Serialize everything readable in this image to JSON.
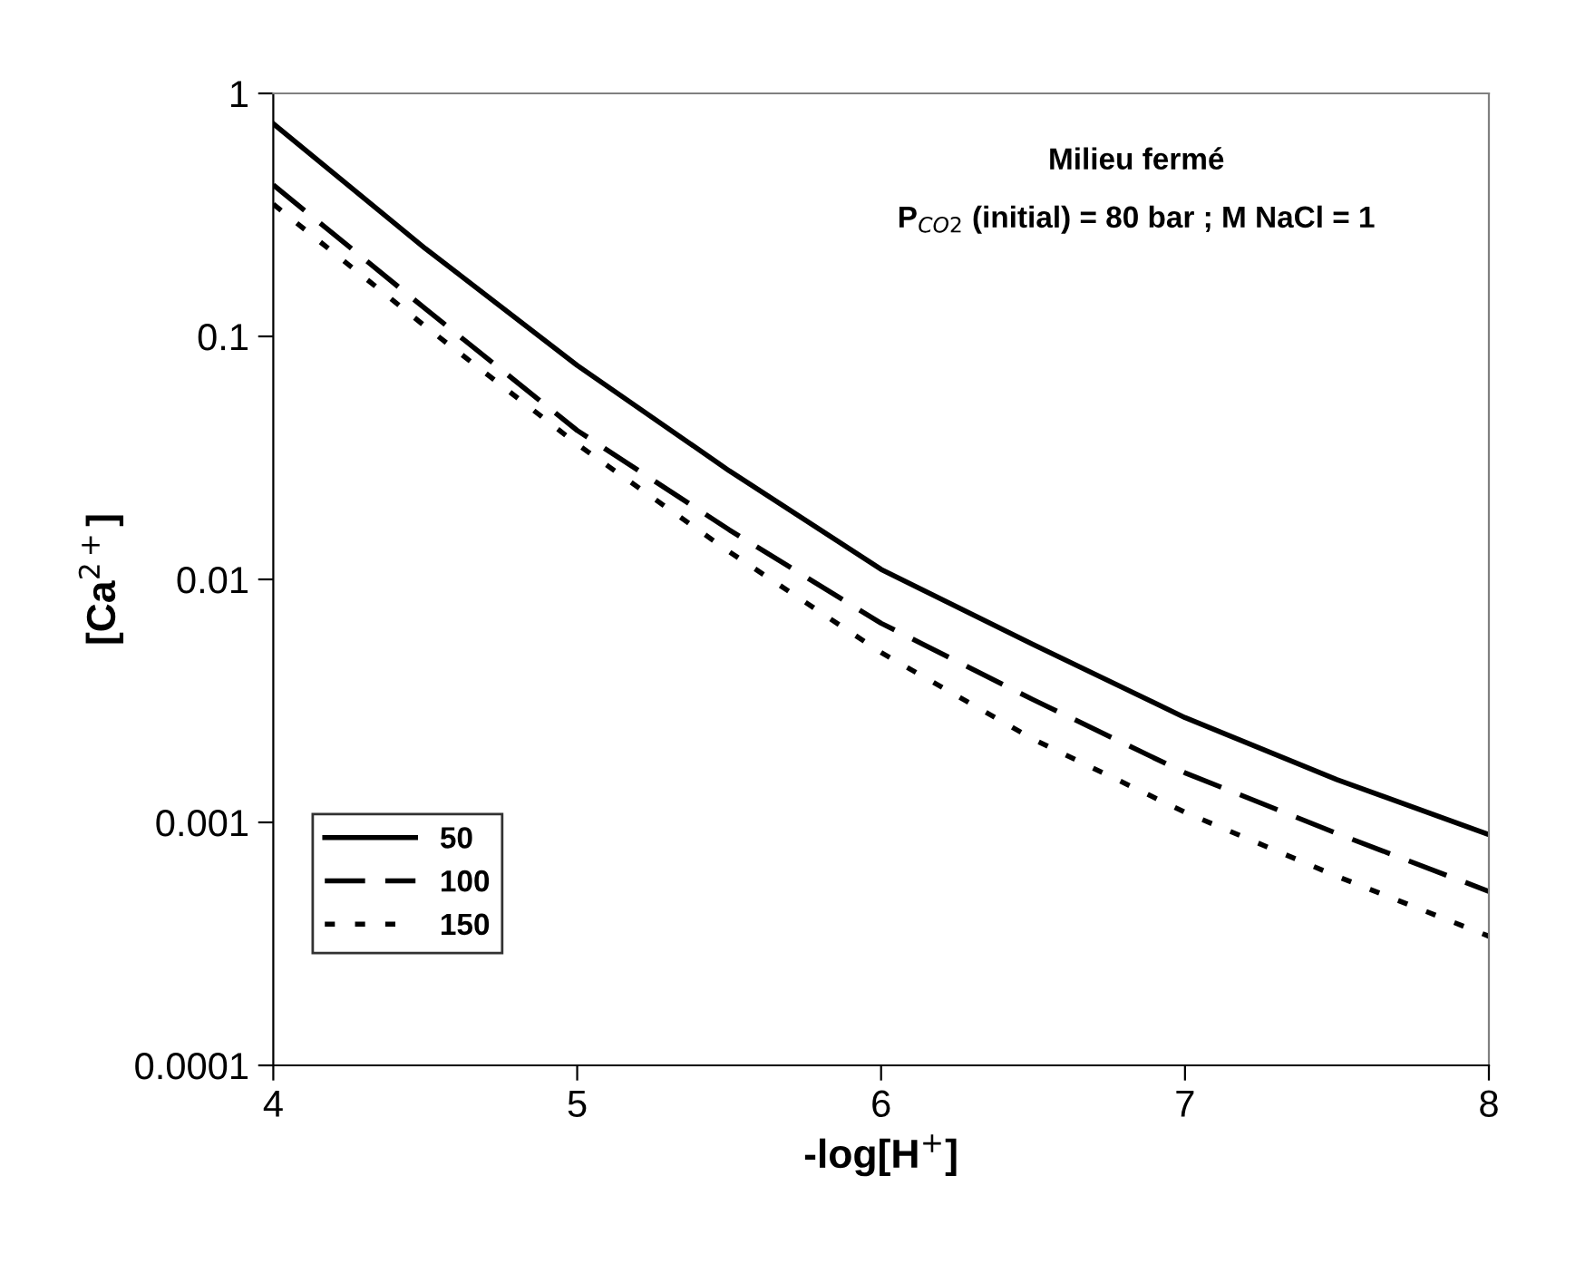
{
  "chart_data": {
    "type": "line",
    "xlabel": "-log[H$^{+}$]",
    "ylabel": "[Ca$^{2+}$]",
    "log": "y",
    "annotations": [
      "Milieu fermé",
      "P$_{CO2}$ (initial) = 80 bar ; M NaCl = 1"
    ],
    "x": [
      4,
      4.5,
      5,
      5.5,
      6,
      6.5,
      7,
      7.5,
      8
    ],
    "xlim": [
      4,
      8
    ],
    "xticks": [
      4,
      5,
      6,
      7,
      8
    ],
    "ylim": [
      0.0001,
      1
    ],
    "yticks": [
      {
        "value": 0.0001,
        "label": "0.0001"
      },
      {
        "value": 0.001,
        "label": "0.001"
      },
      {
        "value": 0.01,
        "label": "0.01"
      },
      {
        "value": 0.1,
        "label": "0.1"
      },
      {
        "value": 1,
        "label": "1"
      }
    ],
    "grid": false,
    "legend": "bottom left",
    "series": [
      {
        "name": "50",
        "color": "#000000",
        "line_style": "solid",
        "values": [
          0.75,
          0.23,
          0.076,
          0.028,
          0.011,
          0.0054,
          0.0027,
          0.0015,
          0.00089
        ]
      },
      {
        "name": "100",
        "color": "#000000",
        "line_style": "dashed",
        "values": [
          0.42,
          0.13,
          0.041,
          0.016,
          0.0066,
          0.0032,
          0.0016,
          0.0009,
          0.00052
        ]
      },
      {
        "name": "150",
        "color": "#000000",
        "line_style": "dotted",
        "values": [
          0.35,
          0.11,
          0.036,
          0.013,
          0.005,
          0.0022,
          0.0011,
          0.0006,
          0.00034
        ]
      }
    ]
  }
}
